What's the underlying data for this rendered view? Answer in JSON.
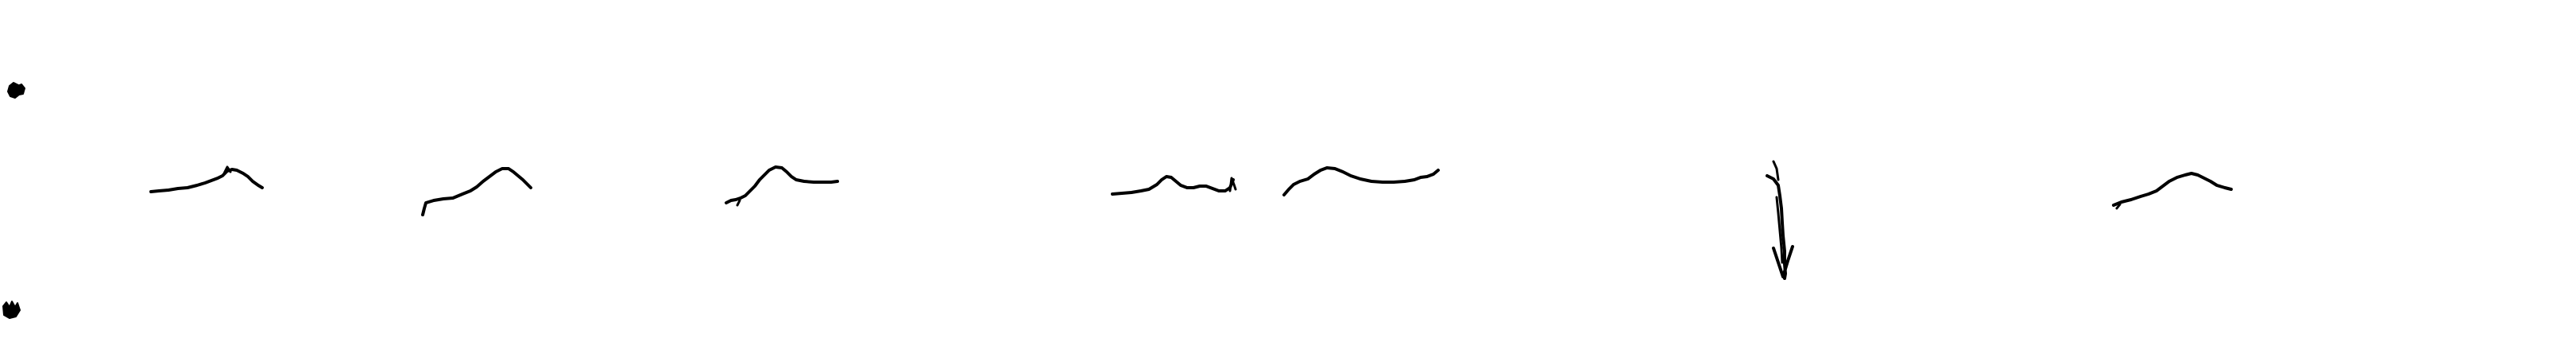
{
  "scan": {
    "background": "#ffffff",
    "ink": "#000000",
    "printed_text": []
  },
  "marks": {
    "top_left_marker_icon": "ink-blot-icon",
    "bottom_left_marker_icon": "ink-blot-icon",
    "trace_count": 8,
    "arrow_icon": "hand-drawn-down-arrow-icon"
  }
}
